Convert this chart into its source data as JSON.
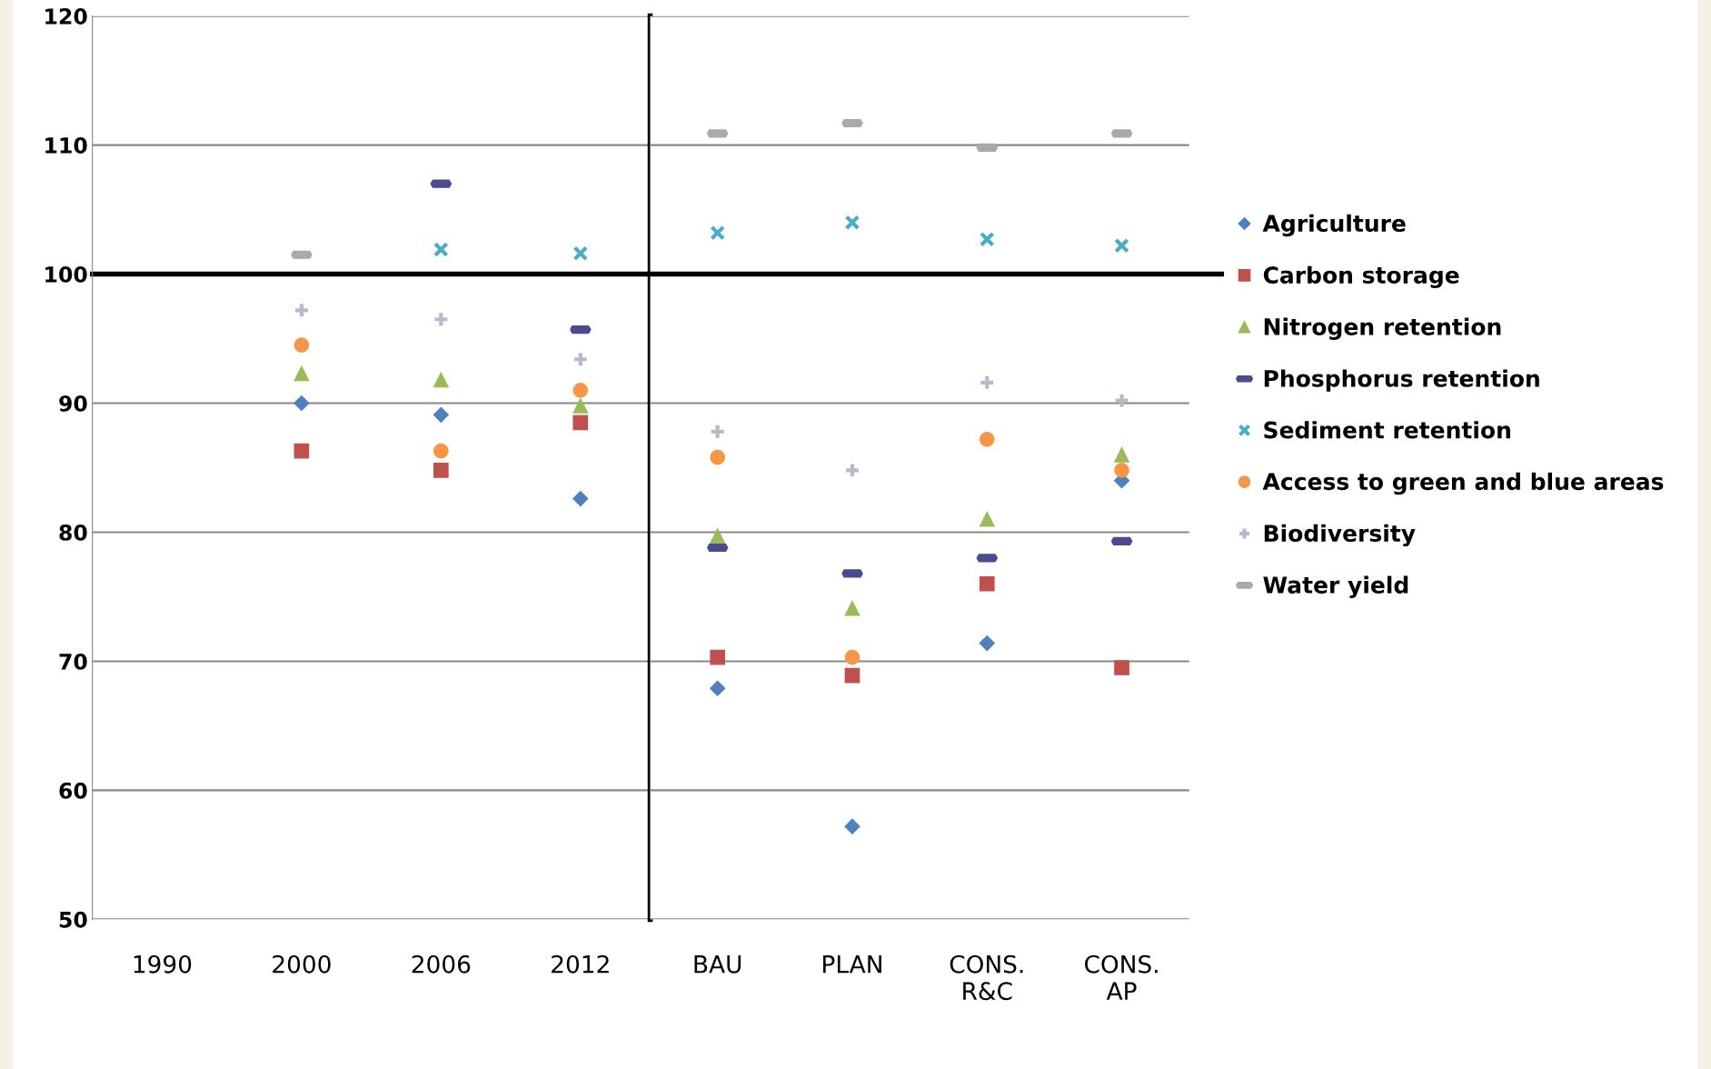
{
  "chart_data": [
    {
      "type": "scatter",
      "categories": [
        "1990",
        "2000",
        "2006",
        "2012"
      ],
      "series": [
        {
          "name": "Agriculture",
          "color": "#4f81bd",
          "marker": "diamond",
          "values": [
            null,
            90.0,
            89.1,
            82.6
          ]
        },
        {
          "name": "Carbon storage",
          "color": "#c0504d",
          "marker": "square",
          "values": [
            null,
            86.3,
            84.8,
            88.5
          ]
        },
        {
          "name": "Nitrogen retention",
          "color": "#9bbb59",
          "marker": "triangle",
          "values": [
            null,
            92.3,
            91.8,
            89.8
          ]
        },
        {
          "name": "Phosphorus retention",
          "color": "#4b4b8f",
          "values": [
            null,
            null,
            107.0,
            95.7
          ]
        },
        {
          "name": "Sediment retention",
          "color": "#4bacc6",
          "marker": "x",
          "values": [
            null,
            null,
            101.9,
            101.6
          ]
        },
        {
          "name": "Access to green and blue areas",
          "color": "#f79646",
          "marker": "circle",
          "values": [
            null,
            94.5,
            86.3,
            91.0
          ]
        },
        {
          "name": "Biodiversity",
          "color": "#b8b8cc",
          "marker": "cross",
          "values": [
            null,
            97.2,
            96.5,
            93.4
          ]
        },
        {
          "name": "Water yield",
          "color": "#aaaaaa",
          "values": [
            null,
            101.5,
            null,
            null
          ]
        }
      ],
      "ylim": [
        50,
        120
      ],
      "yticks": [
        50,
        60,
        70,
        80,
        90,
        100,
        110,
        120
      ],
      "grid": "y",
      "legend": "right",
      "ref_lines": [
        {
          "axis": "y",
          "value": 100,
          "color": "#000000"
        }
      ]
    },
    {
      "type": "scatter",
      "categories": [
        "BAU",
        "PLAN",
        "CONS.\nR&C",
        "CONS.\nAP"
      ],
      "series": [
        {
          "color": "#4f81bd",
          "marker": "diamond",
          "values": [
            67.9,
            57.2,
            71.4,
            84.0
          ]
        },
        {
          "color": "#c0504d",
          "marker": "square",
          "values": [
            70.3,
            68.9,
            76.0,
            69.5
          ]
        },
        {
          "color": "#9bbb59",
          "marker": "triangle",
          "values": [
            79.7,
            74.1,
            81.0,
            86.0
          ]
        },
        {
          "color": "#4b4b8f",
          "values": [
            78.8,
            76.8,
            78.0,
            79.3
          ]
        },
        {
          "color": "#4bacc6",
          "marker": "x",
          "values": [
            103.2,
            104.0,
            102.7,
            102.2
          ]
        },
        {
          "color": "#f79646",
          "marker": "circle",
          "values": [
            85.8,
            70.3,
            87.2,
            84.8
          ]
        },
        {
          "color": "#b8b8cc",
          "marker": "cross",
          "values": [
            87.8,
            84.8,
            91.6,
            90.2
          ]
        },
        {
          "color": "#aaaaaa",
          "values": [
            110.9,
            111.7,
            109.8,
            110.9
          ]
        }
      ],
      "ylim": [
        50,
        120
      ],
      "yticks": [
        50,
        60,
        70,
        80,
        90,
        100,
        110,
        120
      ],
      "grid": "y",
      "tick_labels": "x",
      "ref_lines": [
        {
          "axis": "y",
          "value": 100,
          "color": "#000000"
        }
      ]
    }
  ]
}
